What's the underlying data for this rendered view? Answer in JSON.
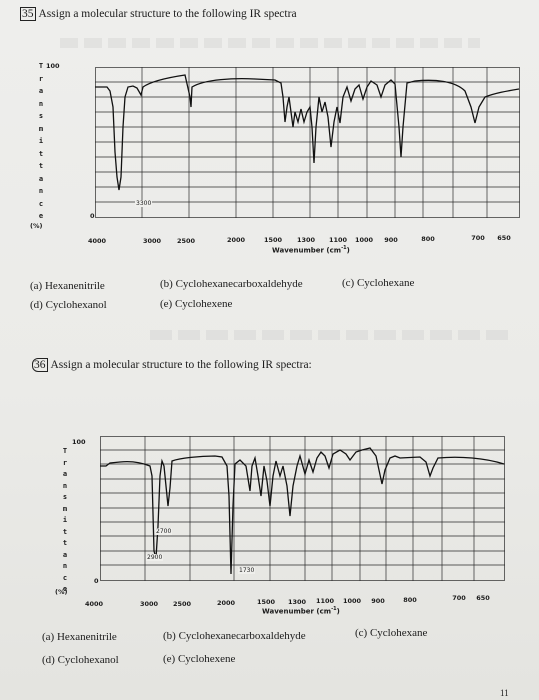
{
  "q35": {
    "number": "35",
    "prompt": "Assign a molecular structure to the following IR spectra",
    "y_axis_letters": [
      "T",
      "r",
      "a",
      "n",
      "s",
      "m",
      "i",
      "t",
      "t",
      "a",
      "n",
      "c",
      "e"
    ],
    "y_top": "100",
    "y_bottom": "0",
    "y_unit": "(%)",
    "x_ticks": [
      "4000",
      "3000",
      "2500",
      "2000",
      "1500",
      "1300",
      "1100",
      "1000",
      "900",
      "800",
      "700",
      "650"
    ],
    "x_label": "Wavenumber (cm",
    "x_label_sup": "-1",
    "x_label_end": ")",
    "annotation": "3300",
    "options": [
      "(a) Hexanenitrile",
      "(b) Cyclohexanecarboxaldehyde",
      "(c) Cyclohexane",
      "(d) Cyclohexanol",
      "(e) Cyclohexene"
    ]
  },
  "q36": {
    "number": "36",
    "prompt": "Assign a molecular structure to the following IR spectra:",
    "y_axis_letters": [
      "T",
      "r",
      "a",
      "n",
      "s",
      "m",
      "i",
      "t",
      "t",
      "a",
      "n",
      "c",
      "e"
    ],
    "y_top": "100",
    "y_bottom": "0",
    "y_unit": "(%)",
    "x_ticks": [
      "4000",
      "3000",
      "2500",
      "2000",
      "1500",
      "1300",
      "1100",
      "1000",
      "900",
      "800",
      "700",
      "650"
    ],
    "x_label": "Wavenumber (cm",
    "x_label_sup": "-1",
    "x_label_end": ")",
    "annotations": [
      "2700",
      "2900",
      "1730"
    ],
    "options": [
      "(a) Hexanenitrile",
      "(b) Cyclohexanecarboxaldehyde",
      "(c) Cyclohexane",
      "(d) Cyclohexanol",
      "(e) Cyclohexene"
    ]
  },
  "page_number": "11",
  "colors": {
    "paper": "#ececea",
    "ink": "#1b1b1b",
    "grid": "#2a2a2a"
  }
}
